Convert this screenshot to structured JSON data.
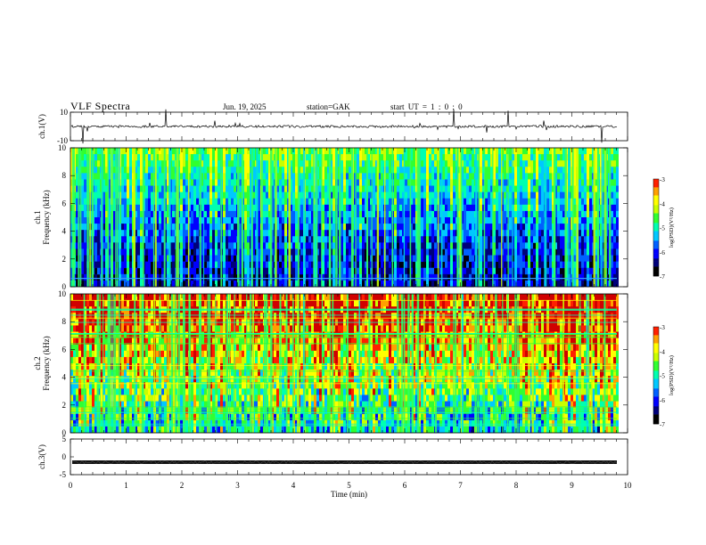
{
  "header": {
    "title": "VLF  Spectra",
    "date": "Jun. 19, 2025",
    "station": "station=GAK",
    "start_time": "start  UT  =   1 : 0   : 0"
  },
  "colors": {
    "colormap": [
      "#000000",
      "#00007a",
      "#0000ff",
      "#0060ff",
      "#00c8ff",
      "#00ffb0",
      "#30ff30",
      "#c8ff00",
      "#ffff00",
      "#ffa000",
      "#ff2000",
      "#d00000",
      "#ff80ff",
      "#ffffff"
    ]
  },
  "chart_data": [
    {
      "type": "line",
      "name": "ch1-waveform",
      "ylabel": "ch.1(V)",
      "ylim": [
        -10,
        10
      ],
      "yticks": [
        10,
        -10
      ],
      "xlim": [
        0,
        10
      ],
      "baseline": 0,
      "note": "noisy trace near 0 V with occasional spikes"
    },
    {
      "type": "heatmap",
      "name": "ch1-spectrogram",
      "ylabel": "ch.1\nFrequency (kHz)",
      "ylabel_lines": [
        "ch.1",
        "Frequency  (kHz)"
      ],
      "ylim": [
        0,
        10
      ],
      "yticks": [
        0,
        2,
        4,
        6,
        8,
        10
      ],
      "xlim": [
        0,
        9.8
      ],
      "colorbar": {
        "label": "log(PSD)(V²/Hz)",
        "range": [
          -7,
          -3
        ],
        "ticks": [
          -3,
          -4,
          -5,
          -6,
          -7
        ]
      },
      "description": "mostly low power (black/blue) below 4 kHz with frequent broadband vertical impulses (green); horizontal line near 0.6 kHz"
    },
    {
      "type": "heatmap",
      "name": "ch2-spectrogram",
      "ylabel": "ch.2\nFrequency (kHz)",
      "ylabel_lines": [
        "ch.2",
        "Frequency  (kHz)"
      ],
      "ylim": [
        0,
        10
      ],
      "yticks": [
        0,
        2,
        4,
        6,
        8,
        10
      ],
      "xlim": [
        0,
        9.8
      ],
      "colorbar": {
        "label": "log(PSD)(V²/Hz)",
        "range": [
          -7,
          -3
        ],
        "ticks": [
          -3,
          -4,
          -5,
          -6,
          -7
        ]
      },
      "description": "high power (yellow/red) above 6 kHz, many horizontal narrowband lines and broadband vertical impulses"
    },
    {
      "type": "line",
      "name": "ch3-waveform",
      "ylabel": "ch.3(V)",
      "ylim": [
        -5,
        5
      ],
      "yticks": [
        5,
        0,
        -5
      ],
      "xlim": [
        0,
        10
      ],
      "baseline": -1.5,
      "note": "dense thick trace near -1.5 V"
    }
  ],
  "xaxis": {
    "label": "Time  (min)",
    "ticks": [
      0,
      1,
      2,
      3,
      4,
      5,
      6,
      7,
      8,
      9,
      10
    ],
    "range": [
      0,
      10
    ]
  }
}
